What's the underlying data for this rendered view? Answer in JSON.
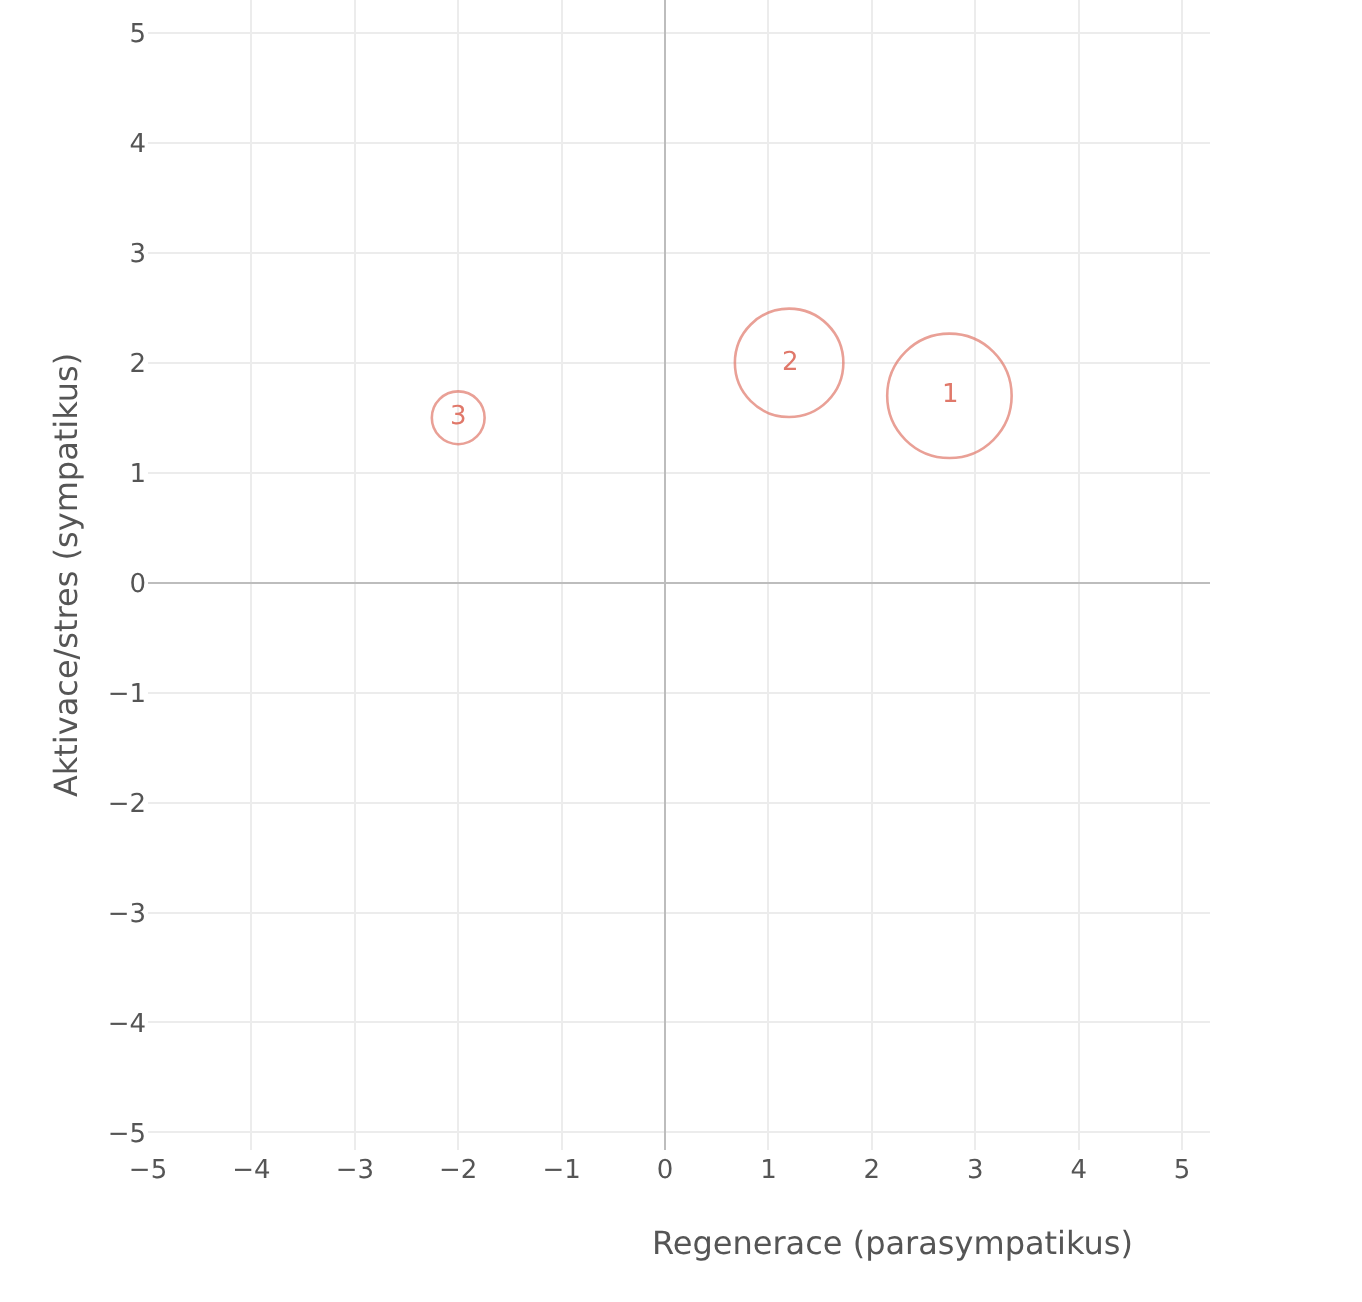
{
  "chart_data": {
    "type": "bubble",
    "xlabel": "Regenerace (parasympatikus)",
    "ylabel": "Aktivace/stres (sympatikus)",
    "x": [
      2.75,
      1.2,
      -2.0
    ],
    "series": [
      {
        "color": "#e0786a",
        "values": [
          1.7,
          2.0,
          1.5
        ],
        "sizes": [
          1,
          0.76,
          0.18
        ]
      }
    ],
    "annotations": [
      {
        "text": "1",
        "x": 2.75,
        "y": 1.7
      },
      {
        "text": "2",
        "x": 1.2,
        "y": 2.0
      },
      {
        "text": "3",
        "x": -2.0,
        "y": 1.5
      }
    ],
    "xlim": [
      -5.0,
      5.27
    ],
    "xticks": [
      -5,
      -4,
      -3,
      -2,
      -1,
      0,
      1,
      2,
      3,
      4,
      5
    ],
    "ylim": [
      -5.16,
      5.3
    ],
    "yticks": [
      -5,
      -4,
      -3,
      -2,
      -1,
      0,
      1,
      2,
      3,
      4,
      5
    ],
    "grid": true,
    "marker": "circle"
  }
}
